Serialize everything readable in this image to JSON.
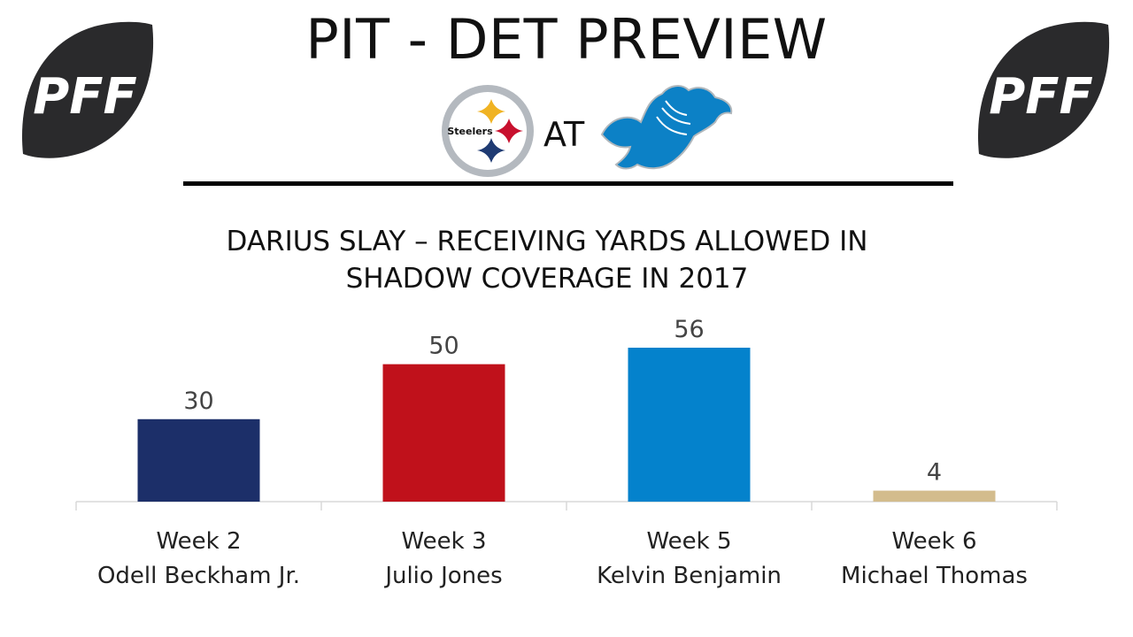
{
  "header": {
    "title": "PIT - DET PREVIEW",
    "logo_text": "PFF",
    "steelers_logo_text": "Steelers",
    "at_label": "AT"
  },
  "colors": {
    "logo_ball": "#2a2a2c",
    "rule": "#000000",
    "axis": "#d9d9d9"
  },
  "chart_data": {
    "type": "bar",
    "title_lines": [
      "DARIUS SLAY – RECEIVING YARDS ALLOWED IN",
      "SHADOW COVERAGE IN 2017"
    ],
    "categories": [
      {
        "week": "Week 2",
        "player": "Odell Beckham Jr."
      },
      {
        "week": "Week 3",
        "player": "Julio Jones"
      },
      {
        "week": "Week 5",
        "player": "Kelvin Benjamin"
      },
      {
        "week": "Week 6",
        "player": "Michael Thomas"
      }
    ],
    "values": [
      30,
      50,
      56,
      4
    ],
    "bar_colors": [
      "#1c2f69",
      "#c0111b",
      "#0482cc",
      "#d3bc8d"
    ],
    "ylim": [
      0,
      56
    ],
    "grid": false,
    "xlabel": "",
    "ylabel": ""
  }
}
